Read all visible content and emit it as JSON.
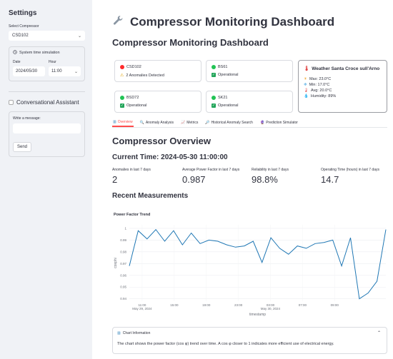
{
  "sidebar": {
    "title": "Settings",
    "compressor_label": "Select Compressor",
    "compressor_value": "CSD102",
    "sim_title": "System time simulation",
    "date_label": "Date",
    "date_value": "2024/05/30",
    "hour_label": "Hour",
    "hour_value": "11:00",
    "assistant_label": "Conversational Assistant",
    "message_label": "Write a message:",
    "send_label": "Send"
  },
  "header": {
    "title": "Compressor Monitoring Dashboard",
    "subtitle": "Compressor Monitoring Dashboard"
  },
  "cards": [
    {
      "name": "CSD102",
      "status_color": "#ff2b2b",
      "status": "2 Anomalies Detected",
      "status_kind": "warning"
    },
    {
      "name": "BS61",
      "status_color": "#21c354",
      "status": "Operational",
      "status_kind": "ok"
    },
    {
      "name": "BSD72",
      "status_color": "#21c354",
      "status": "Operational",
      "status_kind": "ok"
    },
    {
      "name": "SK21",
      "status_color": "#21c354",
      "status": "Operational",
      "status_kind": "ok"
    }
  ],
  "weather": {
    "title": "Weather Santa Croce sull'Arno",
    "max": "Max: 23.0°C",
    "min": "Min: 17.0°C",
    "avg": "Avg: 20.0°C",
    "humidity": "Humidity: 89%"
  },
  "tabs": [
    {
      "label": "Overview",
      "active": true
    },
    {
      "label": "Anomaly Analysis",
      "active": false
    },
    {
      "label": "Metrics",
      "active": false
    },
    {
      "label": "Historical Anomaly Search",
      "active": false
    },
    {
      "label": "Prediction Simulator",
      "active": false
    }
  ],
  "overview": {
    "title": "Compressor Overview",
    "current_time": "Current Time: 2024-05-30 11:00:00",
    "metrics": [
      {
        "label": "Anomalies in last 7 days",
        "value": "2"
      },
      {
        "label": "Average Power Factor in last 7 days",
        "value": "0.987"
      },
      {
        "label": "Reliability in last 7 days",
        "value": "98.8%"
      },
      {
        "label": "Operating Time (hours) in last 7 days",
        "value": "14.7"
      }
    ],
    "recent_title": "Recent Measurements"
  },
  "chart_data": {
    "type": "line",
    "title": "Power Factor Trend",
    "xlabel": "timestamp",
    "ylabel": "cosphi",
    "ylim": [
      0.938,
      1.003
    ],
    "y_ticks": [
      "1",
      "0.99",
      "0.98",
      "0.97",
      "0.96",
      "0.95",
      "0.94"
    ],
    "x_ticks": [
      "11:00\nMay 29, 2024",
      "15:00",
      "19:00",
      "23:00",
      "03:00\nMay 30, 2024",
      "07:00",
      "09:00"
    ],
    "series": [
      {
        "color": "#1f77b4",
        "values": [
          0.968,
          0.998,
          0.991,
          0.999,
          0.989,
          0.998,
          0.986,
          0.996,
          0.987,
          0.99,
          0.989,
          0.986,
          0.984,
          0.985,
          0.989,
          0.971,
          0.992,
          0.983,
          0.978,
          0.985,
          0.983,
          0.987,
          0.988,
          0.99,
          0.968,
          0.992,
          0.94,
          0.945,
          0.955,
          0.999
        ]
      }
    ]
  },
  "info": {
    "title": "Chart Information",
    "text": "The chart shows the power factor (cos φ) trend over time. A cos φ closer to 1 indicates more efficient use of electrical energy."
  }
}
